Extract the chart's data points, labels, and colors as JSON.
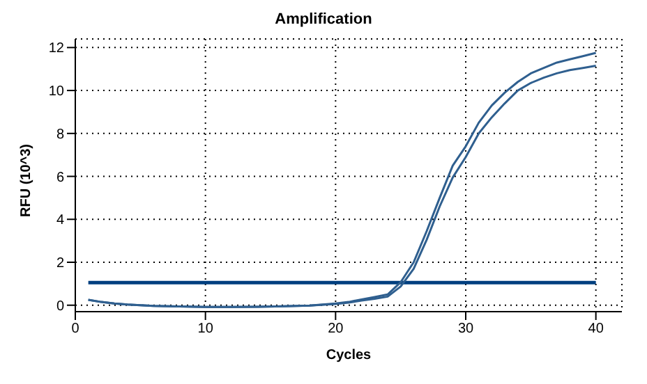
{
  "chart_data": {
    "type": "line",
    "title": "Amplification",
    "xlabel": "Cycles",
    "ylabel": "RFU (10^3)",
    "x": [
      1,
      2,
      3,
      4,
      5,
      6,
      8,
      10,
      12,
      14,
      16,
      18,
      20,
      21,
      22,
      23,
      24,
      25,
      26,
      27,
      28,
      29,
      30,
      31,
      32,
      33,
      34,
      35,
      36,
      37,
      38,
      39,
      40
    ],
    "series": [
      {
        "color": "#2f5f8f",
        "values": [
          0.25,
          0.15,
          0.08,
          0.03,
          0,
          -0.03,
          -0.06,
          -0.08,
          -0.08,
          -0.07,
          -0.05,
          -0.02,
          0.08,
          0.15,
          0.27,
          0.38,
          0.5,
          1.07,
          2.0,
          3.45,
          5.0,
          6.5,
          7.4,
          8.5,
          9.3,
          9.9,
          10.4,
          10.8,
          11.05,
          11.3,
          11.45,
          11.6,
          11.75
        ]
      },
      {
        "color": "#2f5f8f",
        "values": [
          0.25,
          0.15,
          0.08,
          0.03,
          0,
          -0.03,
          -0.06,
          -0.08,
          -0.08,
          -0.07,
          -0.05,
          -0.02,
          0.06,
          0.12,
          0.22,
          0.3,
          0.4,
          0.87,
          1.7,
          3.05,
          4.6,
          5.95,
          6.9,
          8.0,
          8.75,
          9.4,
          10.0,
          10.35,
          10.6,
          10.8,
          10.95,
          11.05,
          11.15
        ]
      }
    ],
    "ref_lines": [
      {
        "axis": "y",
        "value": 1.05,
        "color": "#003f7f"
      }
    ],
    "xlim": [
      0,
      42
    ],
    "xticks": [
      0,
      10,
      20,
      30,
      40
    ],
    "ylim": [
      -0.3,
      12.4
    ],
    "yticks": [
      0,
      2,
      4,
      6,
      8,
      10,
      12
    ],
    "grid": true,
    "marker": "none",
    "line_style": "solid"
  }
}
